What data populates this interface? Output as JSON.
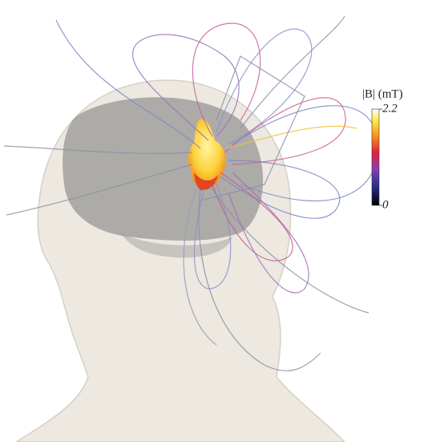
{
  "colorbar": {
    "title": "|B| (mT)",
    "lim": [
      0,
      2.2
    ],
    "ticks": [
      0,
      2.2
    ]
  }
}
